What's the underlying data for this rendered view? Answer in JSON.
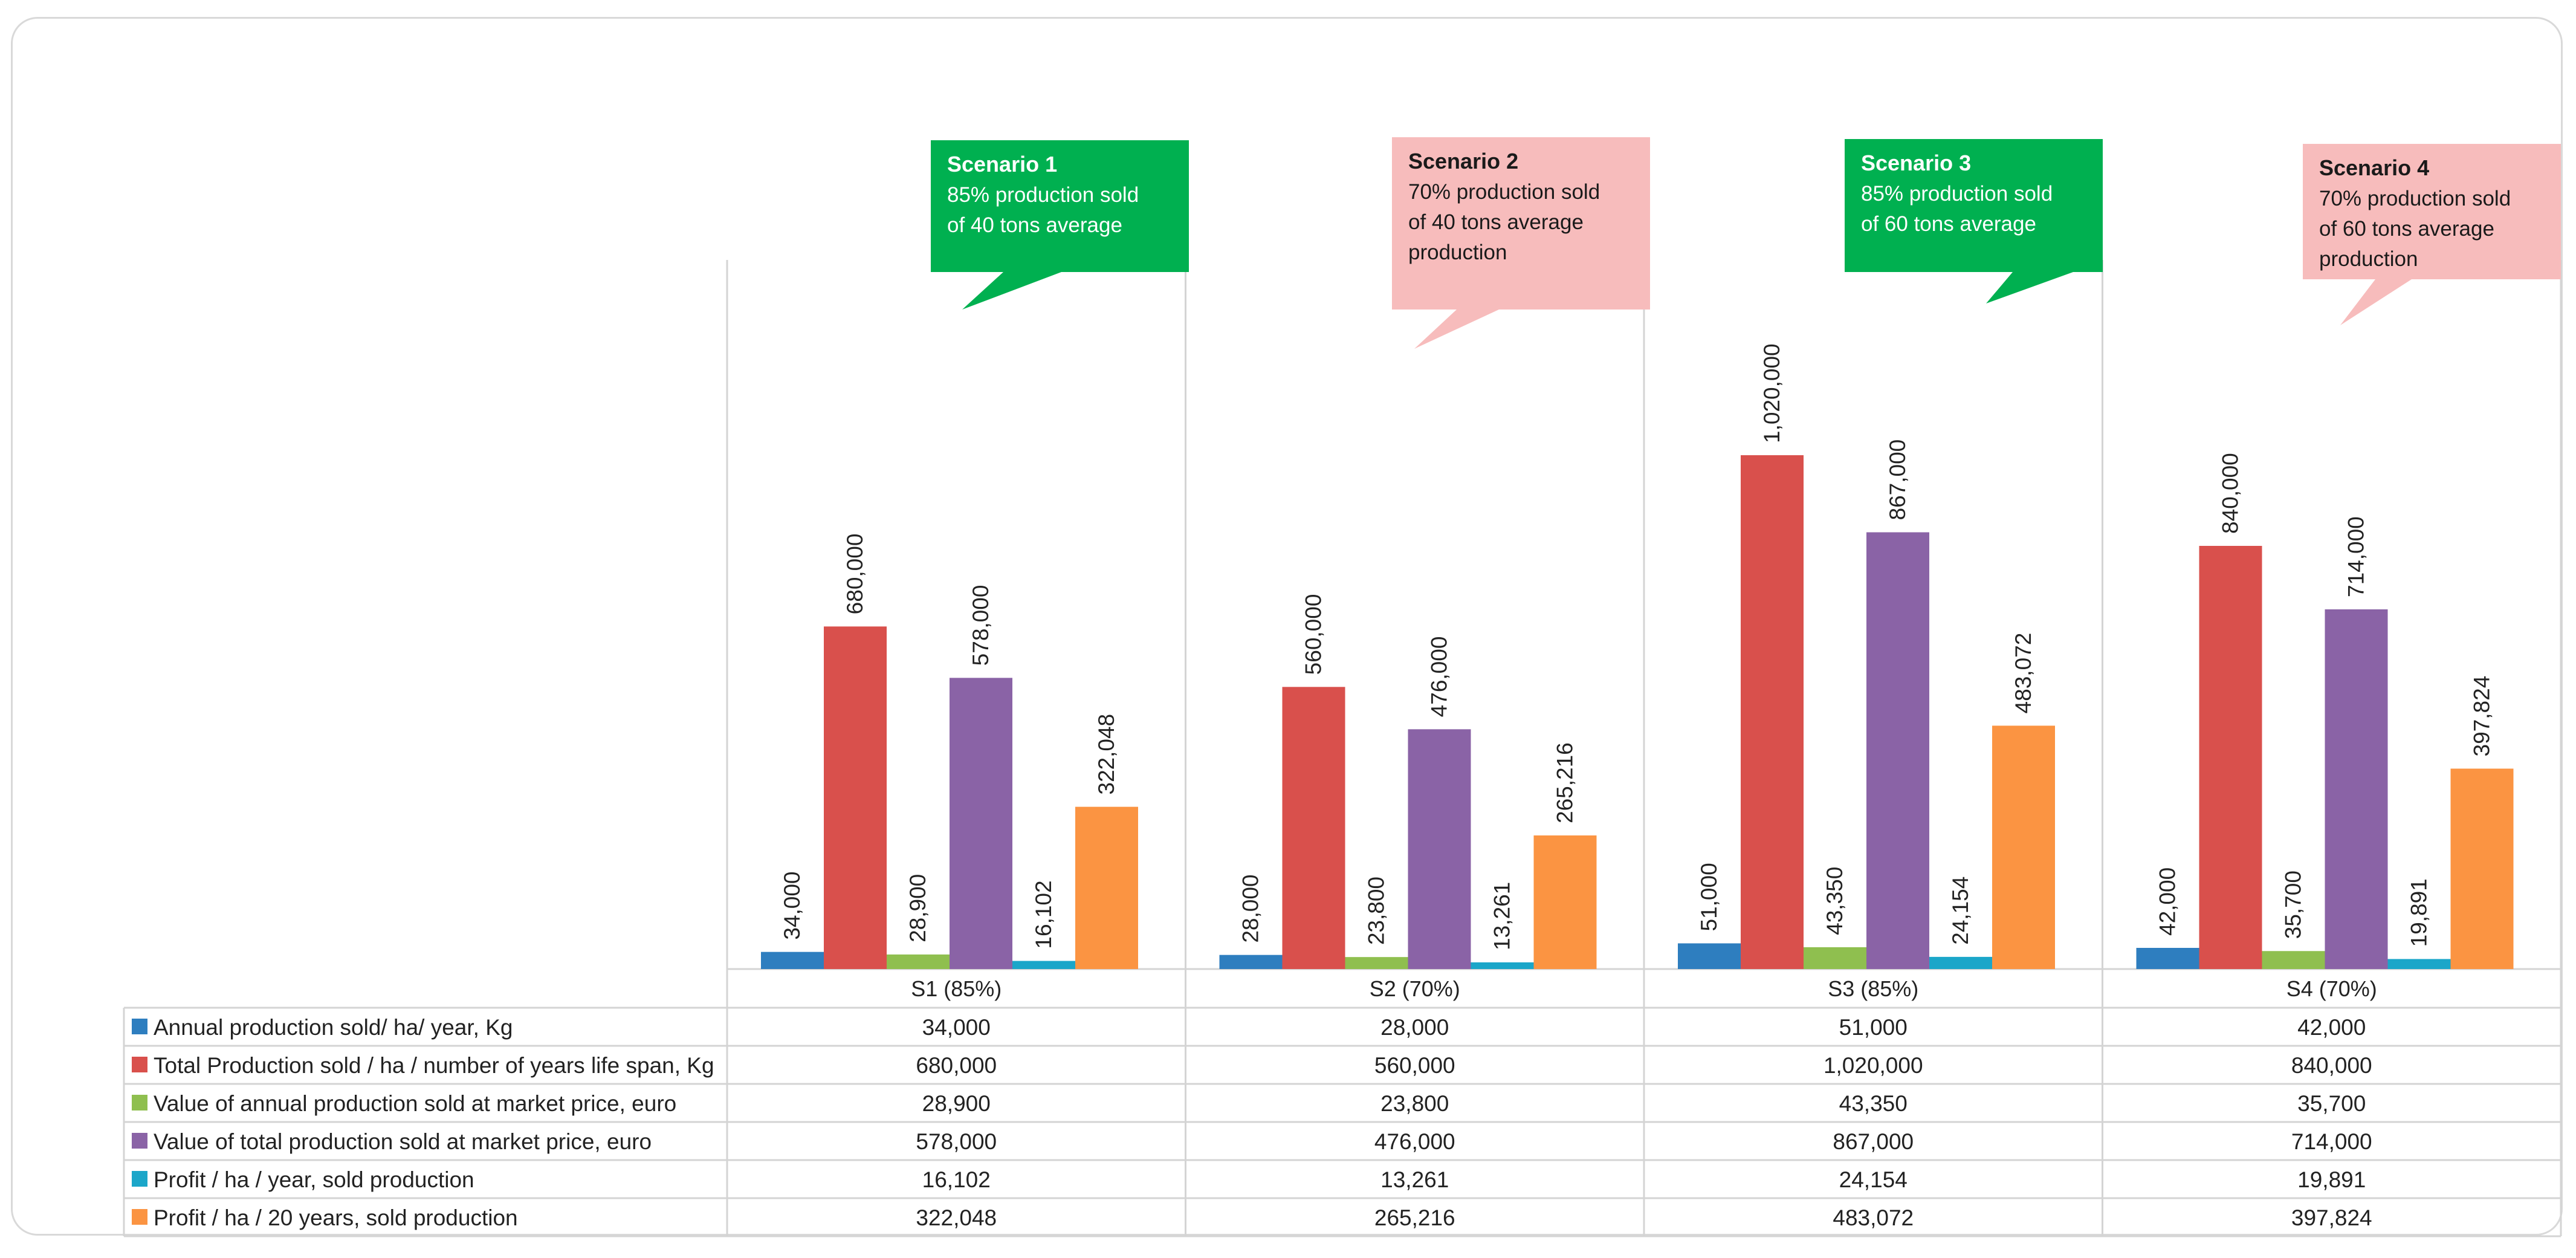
{
  "chart_data": {
    "type": "bar",
    "categories": [
      "S1 (85%)",
      "S2 (70%)",
      "S3 (85%)",
      "S4 (70%)"
    ],
    "ylim": [
      0,
      1200000
    ],
    "grid": false,
    "legend": "data-table-left",
    "series": [
      {
        "name": "Annual production sold/ ha/ year, Kg",
        "color": "#2e7ebf",
        "values": [
          34000,
          28000,
          51000,
          42000
        ],
        "labels": [
          "34,000",
          "28,000",
          "51,000",
          "42,000"
        ]
      },
      {
        "name": "Total Production sold / ha / number of years life span, Kg",
        "color": "#d9504c",
        "values": [
          680000,
          560000,
          1020000,
          840000
        ],
        "labels": [
          "680,000",
          "560,000",
          "1,020,000",
          "840,000"
        ]
      },
      {
        "name": "Value of annual production sold at market price, euro",
        "color": "#8fbf4f",
        "values": [
          28900,
          23800,
          43350,
          35700
        ],
        "labels": [
          "28,900",
          "23,800",
          "43,350",
          "35,700"
        ]
      },
      {
        "name": "Value of total production sold at market price, euro",
        "color": "#8a63a6",
        "values": [
          578000,
          476000,
          867000,
          714000
        ],
        "labels": [
          "578,000",
          "476,000",
          "867,000",
          "714,000"
        ]
      },
      {
        "name": "Profit / ha / year, sold production",
        "color": "#1ba6c9",
        "values": [
          16102,
          13261,
          24154,
          19891
        ],
        "labels": [
          "16,102",
          "13,261",
          "24,154",
          "19,891"
        ]
      },
      {
        "name": "Profit / ha / 20 years, sold production",
        "color": "#fb9442",
        "values": [
          322048,
          265216,
          483072,
          397824
        ],
        "labels": [
          "322,048",
          "265,216",
          "483,072",
          "397,824"
        ]
      }
    ],
    "annotations": [
      {
        "title": "Scenario 1",
        "lines": [
          "85% production sold",
          "of  40 tons average"
        ],
        "fill": "#00b050",
        "text_color": "#ffffff"
      },
      {
        "title": "Scenario 2",
        "lines": [
          "70% production sold",
          "of  40 tons average",
          "production"
        ],
        "fill": "#f7bcbc",
        "text_color": "#1a1a1a"
      },
      {
        "title": "Scenario 3",
        "lines": [
          "85% production sold",
          "of  60 tons average"
        ],
        "fill": "#00b050",
        "text_color": "#ffffff"
      },
      {
        "title": "Scenario 4",
        "lines": [
          "70% production sold",
          "of 60 tons average",
          "production"
        ],
        "fill": "#f7bcbc",
        "text_color": "#1a1a1a"
      }
    ]
  }
}
